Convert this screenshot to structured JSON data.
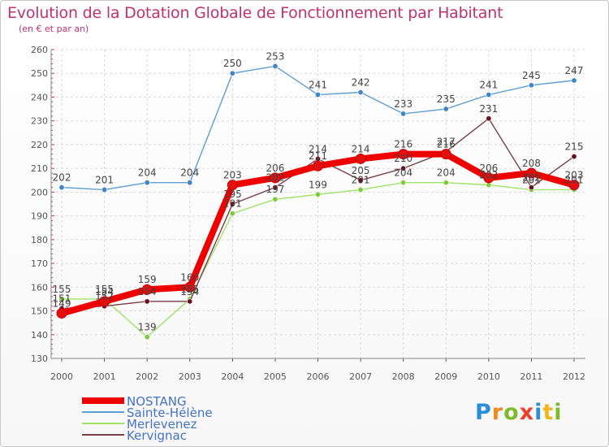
{
  "title": "Evolution de la Dotation Globale de Fonctionnement par Habitant",
  "subtitle": "(en € et par an)",
  "logo": {
    "parts": [
      "P",
      "r",
      "o",
      "x",
      "i",
      "t",
      "i"
    ]
  },
  "chart_data": {
    "type": "line",
    "title": "Evolution de la Dotation Globale de Fonctionnement par Habitant",
    "subtitle": "(en € et par an)",
    "xlabel": "",
    "ylabel": "",
    "categories": [
      "2000",
      "2001",
      "2002",
      "2003",
      "2004",
      "2005",
      "2006",
      "2007",
      "2008",
      "2009",
      "2010",
      "2011",
      "2012"
    ],
    "ylim": [
      130,
      260
    ],
    "yticks": [
      130,
      140,
      150,
      160,
      170,
      180,
      190,
      200,
      210,
      220,
      230,
      240,
      250,
      260
    ],
    "grid": true,
    "legend_position": "bottom-left",
    "series": [
      {
        "name": "NOSTANG",
        "color": "#ee0000",
        "marker": "#e01010",
        "thick": true,
        "values": [
          149,
          154,
          159,
          160,
          203,
          206,
          211,
          214,
          216,
          216,
          206,
          208,
          203
        ]
      },
      {
        "name": "Sainte-Hélène",
        "color": "#5d9ed3",
        "marker": "#3f86c9",
        "thick": false,
        "values": [
          202,
          201,
          204,
          204,
          250,
          253,
          241,
          242,
          233,
          235,
          241,
          245,
          247
        ]
      },
      {
        "name": "Merlevenez",
        "color": "#9ee36a",
        "marker": "#7ccc3c",
        "thick": false,
        "values": [
          155,
          155,
          139,
          155,
          191,
          197,
          199,
          201,
          204,
          204,
          203,
          201,
          201
        ]
      },
      {
        "name": "Kervignac",
        "color": "#7a3f48",
        "marker": "#6b1020",
        "thick": false,
        "values": [
          151,
          152,
          154,
          154,
          195,
          202,
          214,
          205,
          210,
          217,
          231,
          202,
          215
        ]
      }
    ]
  }
}
